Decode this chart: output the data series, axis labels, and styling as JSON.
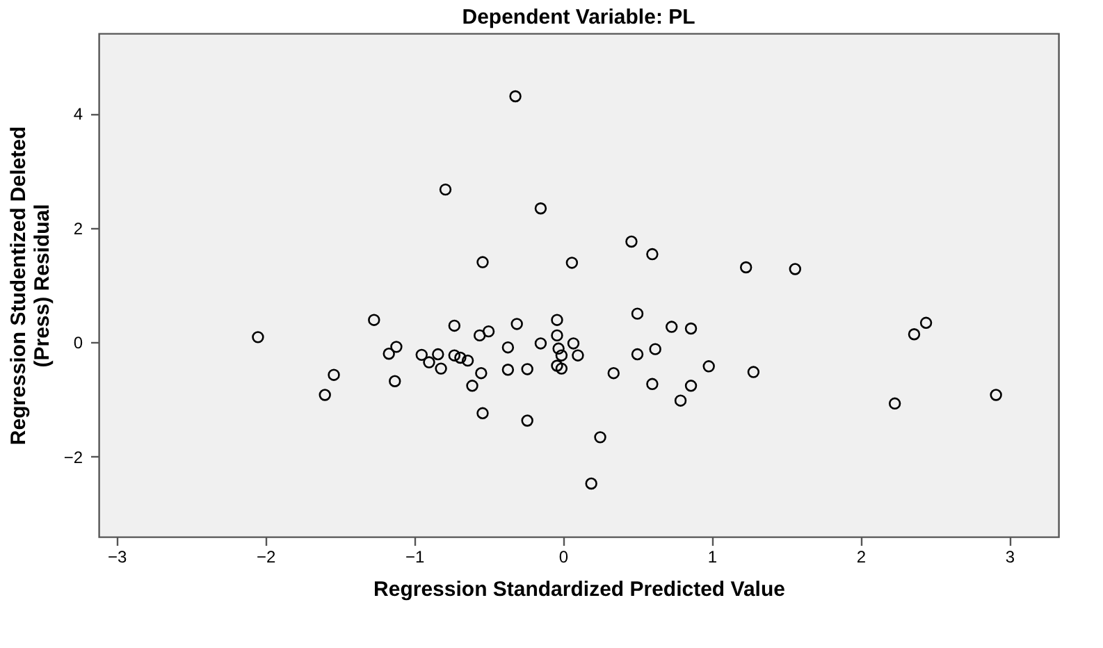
{
  "chart_data": {
    "type": "scatter",
    "title": "Dependent Variable: PL",
    "xlabel": "Regression Standardized Predicted Value",
    "ylabel": "Regression Studentized Deleted\n(Press) Residual",
    "xlim": [
      -3.12,
      3.33
    ],
    "xticks": [
      -3,
      -2,
      -1,
      0,
      1,
      2,
      3
    ],
    "ylim": [
      -3.4,
      5.4
    ],
    "yticks": [
      -2,
      0,
      2,
      4
    ],
    "grid": false,
    "marker": "circle",
    "series": [
      {
        "color": "#000000",
        "x": [
          -0.32,
          -0.79,
          -0.15,
          -0.54,
          0.06,
          -2.05,
          -1.27,
          -0.73,
          -0.56,
          -0.5,
          -0.31,
          -0.04,
          -0.04,
          -0.15,
          -0.37,
          -0.03,
          -0.01,
          0.07,
          0.1,
          -1.17,
          -1.12,
          -0.95,
          -0.9,
          -0.84,
          -0.82,
          -0.73,
          -0.69,
          -0.64,
          -0.55,
          -0.61,
          -0.37,
          -0.24,
          -0.04,
          -0.01,
          -1.54,
          -1.6,
          -1.13,
          -0.54,
          -0.24,
          0.46,
          0.6,
          1.23,
          1.56,
          0.5,
          0.73,
          0.86,
          0.62,
          0.5,
          0.34,
          0.6,
          0.86,
          0.79,
          0.98,
          1.28,
          0.25,
          0.19,
          2.36,
          2.44,
          2.23,
          2.91
        ],
        "values": [
          4.3,
          2.67,
          2.34,
          1.4,
          1.39,
          0.09,
          0.39,
          0.29,
          0.12,
          0.19,
          0.32,
          0.39,
          0.12,
          -0.02,
          -0.09,
          -0.11,
          -0.23,
          -0.02,
          -0.23,
          -0.2,
          -0.08,
          -0.22,
          -0.35,
          -0.21,
          -0.46,
          -0.23,
          -0.27,
          -0.32,
          -0.54,
          -0.76,
          -0.48,
          -0.47,
          -0.41,
          -0.46,
          -0.57,
          -0.92,
          -0.68,
          -1.24,
          -1.37,
          1.76,
          1.54,
          1.31,
          1.28,
          0.5,
          0.27,
          0.24,
          -0.12,
          -0.21,
          -0.54,
          -0.73,
          -0.76,
          -1.02,
          -0.42,
          -0.52,
          -1.66,
          -2.47,
          0.14,
          0.34,
          -1.07,
          -0.92
        ]
      }
    ]
  }
}
